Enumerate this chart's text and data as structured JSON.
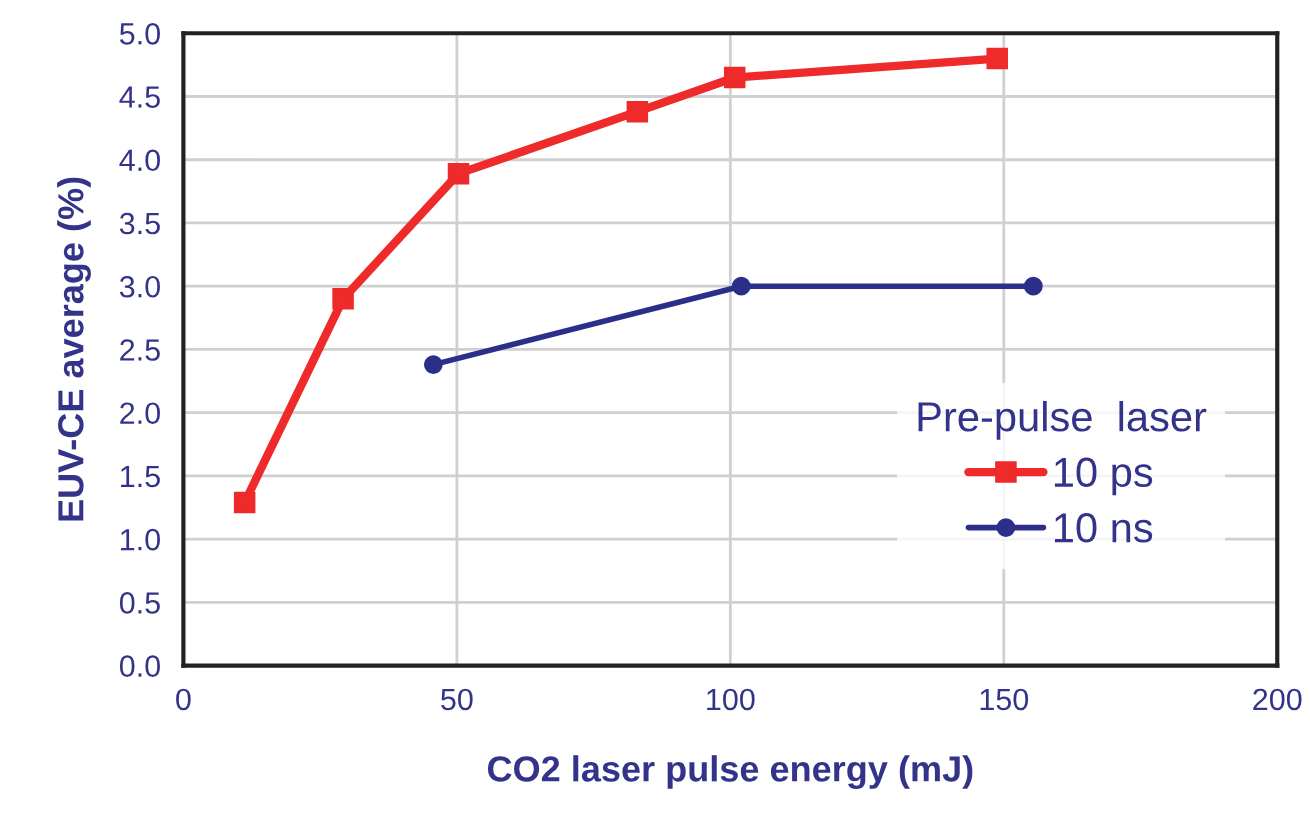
{
  "chart_data": {
    "type": "line",
    "xlabel": "CO2 laser pulse energy (mJ)",
    "ylabel": "EUV-CE average (%)",
    "legend_title": "Pre-pulse  laser",
    "series": [
      {
        "name": "10 ps",
        "color": "#ee2a2a",
        "marker": "square",
        "x": [
          11.2,
          29.2,
          50.3,
          83,
          100.8,
          148.8
        ],
        "values": [
          1.29,
          2.9,
          3.89,
          4.38,
          4.65,
          4.8
        ]
      },
      {
        "name": "10 ns",
        "color": "#2b2f8a",
        "marker": "circle",
        "x": [
          45.7,
          102,
          155.4
        ],
        "values": [
          2.38,
          3.0,
          3.0
        ]
      }
    ],
    "xlim": [
      0,
      200
    ],
    "xticks": [
      0,
      50,
      100,
      150,
      200
    ],
    "ylim": [
      0,
      5
    ],
    "yticks": [
      {
        "value": 0,
        "label": "0.0"
      },
      0.5,
      {
        "value": 1,
        "label": "1.0"
      },
      1.5,
      {
        "value": 2,
        "label": "2.0"
      },
      2.5,
      {
        "value": 3,
        "label": "3.0"
      },
      3.5,
      {
        "value": 4,
        "label": "4.0"
      },
      4.5,
      {
        "value": 5,
        "label": "5.0"
      }
    ],
    "grid": true,
    "legend": "right",
    "line_style": "solid"
  }
}
